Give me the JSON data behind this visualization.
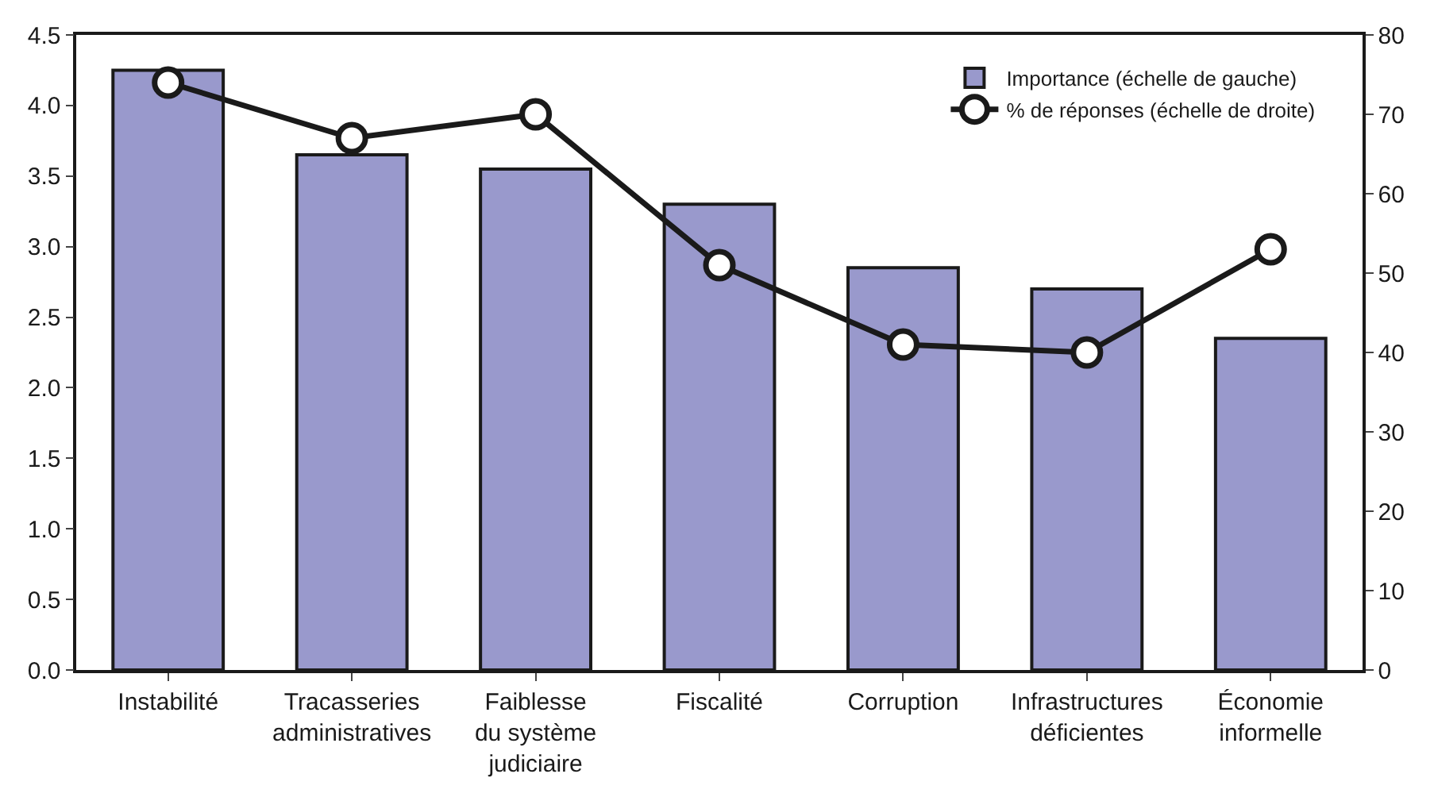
{
  "chart_data": {
    "type": "bar",
    "categories": [
      "Instabilité",
      "Tracasseries administratives",
      "Faiblesse du système judiciaire",
      "Fiscalité",
      "Corruption",
      "Infrastructures déficientes",
      "Économie informelle"
    ],
    "series": [
      {
        "name": "Importance (échelle de gauche)",
        "color": "#9999cc",
        "values": [
          4.25,
          3.65,
          3.55,
          3.3,
          2.85,
          2.7,
          2.35
        ]
      },
      {
        "name": "% de réponses (échelle de droite)",
        "type": "line",
        "axis": "y2",
        "color": "#1a1a1a",
        "marker": "circle",
        "line_style": "solid",
        "values": [
          74,
          67,
          70,
          51,
          41,
          40,
          53
        ]
      }
    ],
    "ylim": [
      0,
      4.5
    ],
    "yticks": [
      {
        "value": 0,
        "label": "0.0"
      },
      {
        "value": 0.5,
        "label": "0.5"
      },
      {
        "value": 1,
        "label": "1.0"
      },
      {
        "value": 1.5,
        "label": "1.5"
      },
      {
        "value": 2,
        "label": "2.0"
      },
      {
        "value": 2.5,
        "label": "2.5"
      },
      {
        "value": 3,
        "label": "3.0"
      },
      {
        "value": 3.5,
        "label": "3.5"
      },
      {
        "value": 4,
        "label": "4.0"
      },
      {
        "value": 4.5,
        "label": "4.5"
      }
    ],
    "y2lim": [
      0,
      80
    ],
    "y2ticks": [
      0,
      10,
      20,
      30,
      40,
      50,
      60,
      70,
      80
    ],
    "grid": false,
    "legend": "top right"
  }
}
